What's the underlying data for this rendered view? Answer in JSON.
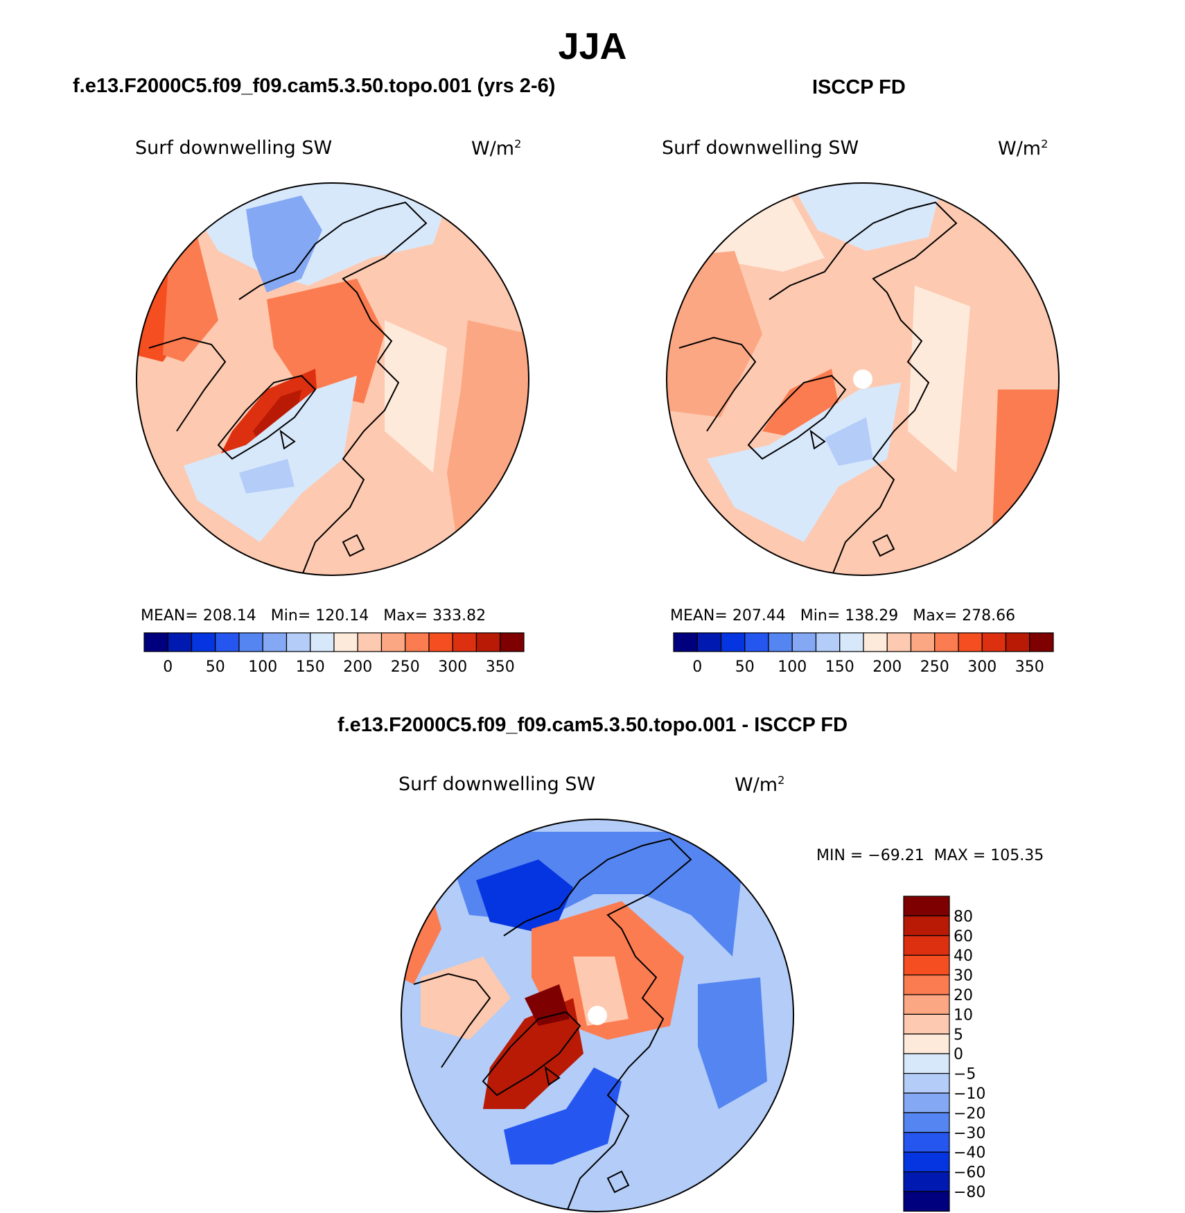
{
  "figure": {
    "title": "JJA",
    "panels": [
      {
        "id": "model",
        "case_title": "f.e13.F2000C5.f09_f09.cam5.3.50.topo.001 (yrs 2-6)",
        "variable": "Surf downwelling SW",
        "units": "W/m",
        "units_sup": "2",
        "stats": {
          "mean_label": "MEAN=",
          "mean": "208.14",
          "min_label": "Min=",
          "min": "120.14",
          "max_label": "Max=",
          "max": "333.82"
        }
      },
      {
        "id": "obs",
        "case_title": "ISCCP FD",
        "variable": "Surf downwelling SW",
        "units": "W/m",
        "units_sup": "2",
        "stats": {
          "mean_label": "MEAN=",
          "mean": "207.44",
          "min_label": "Min=",
          "min": "138.29",
          "max_label": "Max=",
          "max": "278.66"
        }
      },
      {
        "id": "diff",
        "case_title": "f.e13.F2000C5.f09_f09.cam5.3.50.topo.001 - ISCCP FD",
        "variable": "Surf downwelling SW",
        "units": "W/m",
        "units_sup": "2",
        "stats": {
          "text": "MIN = −69.21  MAX = 105.35"
        }
      }
    ]
  },
  "colorbar_abs": {
    "colors": [
      "#00007f",
      "#0019b0",
      "#0535e0",
      "#2556f0",
      "#5585f0",
      "#85a8f5",
      "#b3ccf8",
      "#d8e8fb",
      "#feeadb",
      "#fdc9b0",
      "#fca783",
      "#fb7c50",
      "#f54e20",
      "#dd3010",
      "#b81a05",
      "#7f0000"
    ],
    "labels": [
      "0",
      "50",
      "100",
      "150",
      "200",
      "250",
      "300",
      "350"
    ]
  },
  "colorbar_diff": {
    "colors": [
      "#00007f",
      "#0019b0",
      "#0535e0",
      "#2556f0",
      "#5585f0",
      "#85a8f5",
      "#b3ccf8",
      "#d8e8fb",
      "#feeadb",
      "#fdc9b0",
      "#fca783",
      "#fb7c50",
      "#f54e20",
      "#dd3010",
      "#b81a05",
      "#7f0000"
    ],
    "labels": [
      "80",
      "60",
      "40",
      "30",
      "20",
      "10",
      "5",
      "0",
      "−5",
      "−10",
      "−20",
      "−30",
      "−40",
      "−60",
      "−80"
    ]
  },
  "chart_data": {
    "type": "heatmap",
    "projection": "north polar stereographic",
    "season": "JJA",
    "fields": [
      {
        "name": "model",
        "variable": "Surf downwelling SW",
        "units": "W/m2",
        "mean": 208.14,
        "min": 120.14,
        "max": 333.82,
        "levels": [
          0,
          25,
          50,
          75,
          100,
          125,
          150,
          175,
          200,
          225,
          250,
          275,
          300,
          325,
          350
        ]
      },
      {
        "name": "obs",
        "variable": "Surf downwelling SW",
        "units": "W/m2",
        "mean": 207.44,
        "min": 138.29,
        "max": 278.66,
        "levels": [
          0,
          25,
          50,
          75,
          100,
          125,
          150,
          175,
          200,
          225,
          250,
          275,
          300,
          325,
          350
        ]
      },
      {
        "name": "diff",
        "variable": "Surf downwelling SW",
        "units": "W/m2",
        "min": -69.21,
        "max": 105.35,
        "levels": [
          -80,
          -60,
          -40,
          -30,
          -20,
          -10,
          -5,
          0,
          5,
          10,
          20,
          30,
          40,
          60,
          80
        ]
      }
    ]
  }
}
